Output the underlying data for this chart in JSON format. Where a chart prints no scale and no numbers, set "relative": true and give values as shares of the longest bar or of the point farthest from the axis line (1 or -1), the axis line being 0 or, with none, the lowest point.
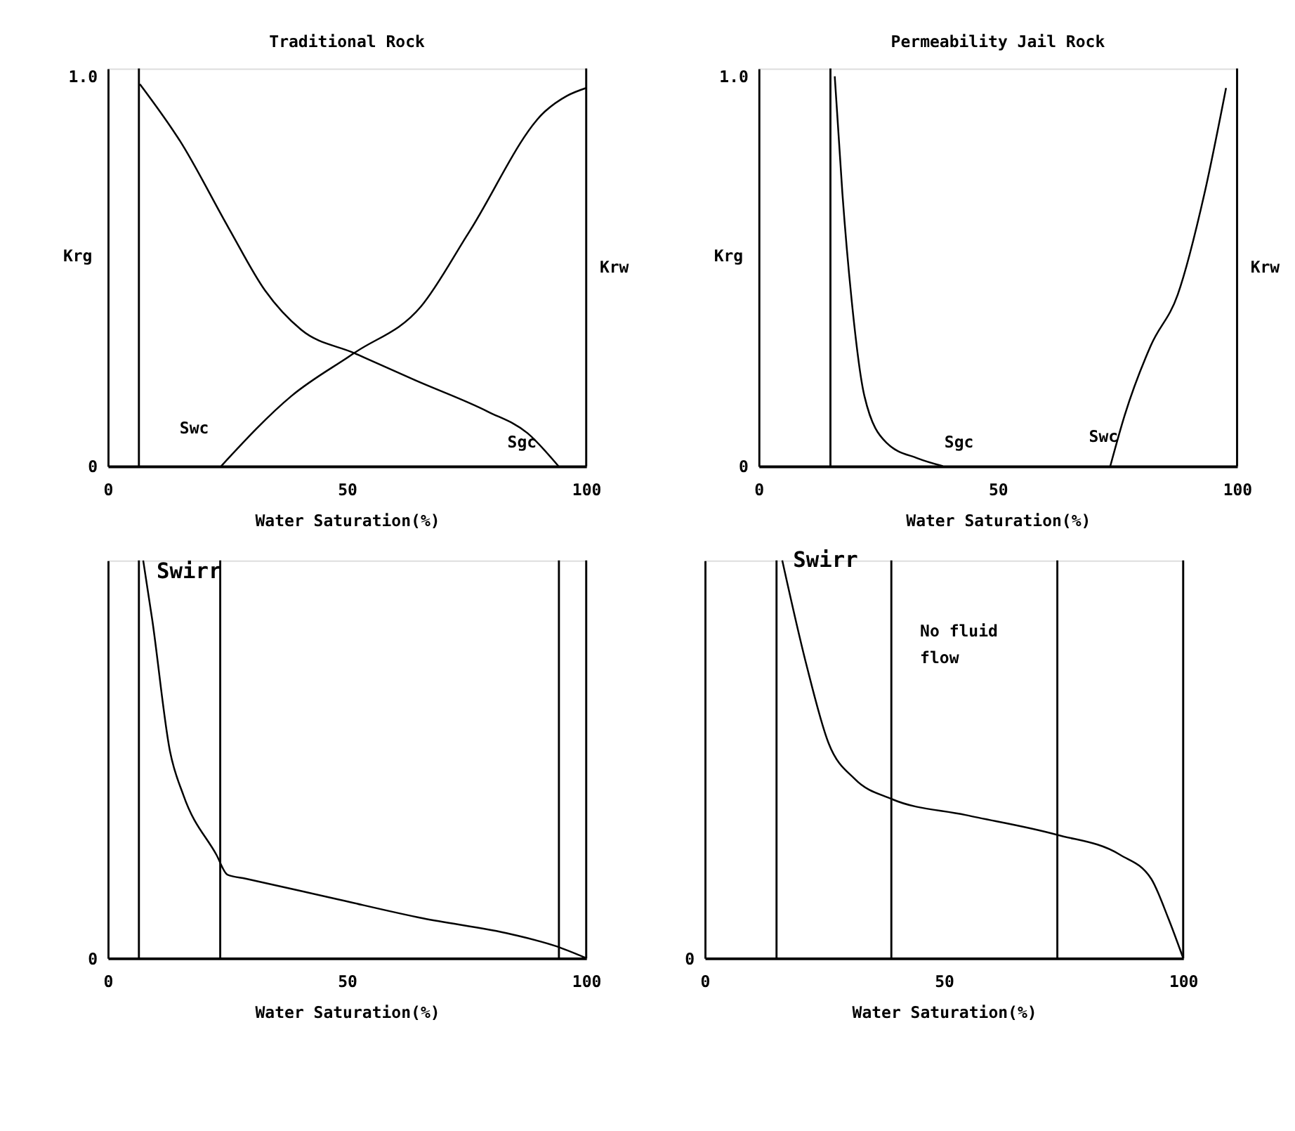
{
  "chart_data": [
    {
      "type": "line",
      "title": "Traditional Rock",
      "xlabel": "Water Saturation(%)",
      "ylabel": "Krg",
      "y2label": "Krw",
      "xlim": [
        0,
        100
      ],
      "xticks": [
        0,
        50,
        100
      ],
      "ylim": [
        0,
        1.02
      ],
      "yticks": [
        0,
        {
          "value": 1,
          "label": "1.0"
        }
      ],
      "grid": false,
      "marker": "none",
      "line_style": "solid",
      "series": [
        {
          "color": "#000000",
          "x": [
            6.7,
            15.3,
            25.3,
            32.9,
            40.4,
            51.5,
            64.3,
            79.4,
            87.7,
            94.2
          ],
          "values": [
            0.98,
            0.83,
            0.61,
            0.45,
            0.35,
            0.29,
            0.22,
            0.14,
            0.085,
            0
          ]
        },
        {
          "color": "#000000",
          "x": [
            23.7,
            38.4,
            51.5,
            65.5,
            75.5,
            91.4,
            96,
            100
          ],
          "values": [
            0,
            0.18,
            0.29,
            0.41,
            0.6,
            0.91,
            0.95,
            0.97
          ]
        }
      ],
      "ref_lines": [
        {
          "axis": "x",
          "value": 6.5,
          "color": "#000000"
        }
      ],
      "annotations": [
        {
          "text": "Swc",
          "x": 23.7,
          "y": 0
        },
        {
          "text": "Sgc",
          "x": 94.2,
          "y": 0
        }
      ]
    },
    {
      "type": "line",
      "title": "Permeability Jail Rock",
      "xlabel": "Water Saturation(%)",
      "ylabel": "Krg",
      "y2label": "Krw",
      "xlim": [
        0,
        100
      ],
      "xticks": [
        0,
        50,
        100
      ],
      "ylim": [
        0,
        1.02
      ],
      "yticks": [
        0,
        {
          "value": 1,
          "label": "1.0"
        }
      ],
      "grid": false,
      "marker": "none",
      "line_style": "solid",
      "series": [
        {
          "color": "#000000",
          "x": [
            15.9,
            17.5,
            19.4,
            22.1,
            26.7,
            33.2,
            38.5
          ],
          "values": [
            1.0,
            0.7,
            0.43,
            0.18,
            0.06,
            0.02,
            0
          ]
        },
        {
          "color": "#000000",
          "x": [
            73.5,
            76.5,
            82,
            87.6,
            93.2,
            97.7
          ],
          "values": [
            0,
            0.13,
            0.31,
            0.44,
            0.7,
            0.97
          ]
        }
      ],
      "ref_lines": [
        {
          "axis": "x",
          "value": 15,
          "color": "#000000"
        }
      ],
      "annotations": [
        {
          "text": "Sgc",
          "x": 38.5,
          "y": 0
        },
        {
          "text": "Swc",
          "x": 73.5,
          "y": 0
        }
      ]
    },
    {
      "type": "line",
      "relative": true,
      "xlabel": "Water Saturation(%)",
      "xlim": [
        0,
        100
      ],
      "xticks": [
        0,
        50,
        100
      ],
      "grid": false,
      "marker": "none",
      "line_style": "solid",
      "series": [
        {
          "color": "#000000",
          "x": [
            7.4,
            9.3,
            13.0,
            15.8,
            22.7,
            25.0,
            28.8,
            47.3,
            65.9,
            84.4,
            93.7,
            100
          ],
          "values": [
            1.0,
            0.85,
            0.52,
            0.41,
            0.26,
            0.21,
            0.2,
            0.15,
            0.1,
            0.06,
            0.03,
            0
          ]
        }
      ],
      "ref_lines": [
        {
          "axis": "x",
          "value": 6.5,
          "color": "#000000"
        },
        {
          "axis": "x",
          "value": 23.5,
          "color": "#000000"
        },
        {
          "axis": "x",
          "value": 94.3,
          "color": "#000000"
        }
      ],
      "annotations": [
        "0",
        {
          "text": "Swirr",
          "x": 7.4,
          "y": 1.0
        }
      ]
    },
    {
      "type": "line",
      "relative": true,
      "xlabel": "Water Saturation(%)",
      "xlim": [
        0,
        100
      ],
      "xticks": [
        0,
        50,
        100
      ],
      "grid": false,
      "marker": "none",
      "line_style": "solid",
      "series": [
        {
          "color": "#000000",
          "x": [
            16.2,
            21.2,
            25.9,
            31.4,
            39.1,
            54.5,
            73.7,
            86.8,
            93.3,
            96.9,
            100
          ],
          "values": [
            1.0,
            0.74,
            0.54,
            0.45,
            0.4,
            0.36,
            0.31,
            0.26,
            0.2,
            0.1,
            0
          ]
        }
      ],
      "ref_lines": [
        {
          "axis": "x",
          "value": 15,
          "color": "#000000"
        },
        {
          "axis": "x",
          "value": 39,
          "color": "#000000"
        },
        {
          "axis": "x",
          "value": 73.7,
          "color": "#000000"
        }
      ],
      "annotations": [
        "0",
        {
          "text": "Swirr",
          "x": 16.2,
          "y": 1.0
        },
        "No fluid\nflow"
      ]
    }
  ]
}
